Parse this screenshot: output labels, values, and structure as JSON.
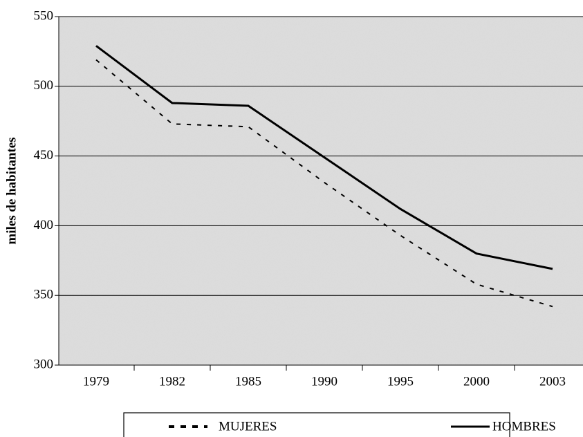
{
  "chart_data": {
    "type": "line",
    "y_label": "miles de habitantes",
    "categories": [
      "1979",
      "1982",
      "1985",
      "1990",
      "1995",
      "2000",
      "2003"
    ],
    "series": [
      {
        "name": "MUJERES",
        "color": "#000000",
        "dash": true,
        "values": [
          519,
          473,
          471,
          431,
          393,
          358,
          342
        ]
      },
      {
        "name": "HOMBRES",
        "color": "#000000",
        "dash": false,
        "values": [
          529,
          488,
          486,
          449,
          412,
          380,
          369
        ]
      }
    ],
    "ylim": [
      300,
      550
    ],
    "yticks": [
      300,
      350,
      400,
      450,
      500,
      550
    ],
    "grid": true,
    "legend": "bottom"
  }
}
